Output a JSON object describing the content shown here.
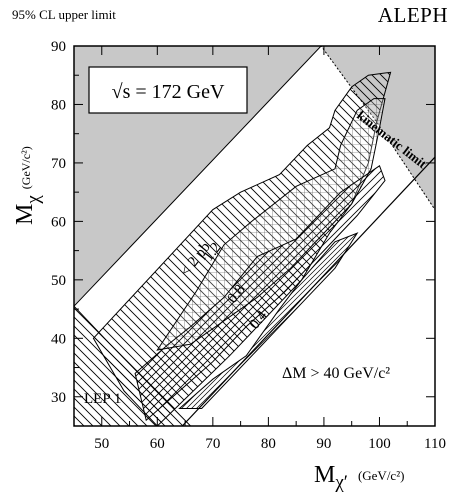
{
  "header": {
    "left_note": "95% CL upper limit",
    "experiment": "ALEPH"
  },
  "chart_data": {
    "type": "contour",
    "title": "",
    "energy_label": "√s = 172 GeV",
    "xlabel": {
      "symbol": "M",
      "sub": "χ′",
      "unit": "(GeV/c²)"
    },
    "ylabel": {
      "symbol": "M",
      "sub": "χ",
      "unit": "(GeV/c²)"
    },
    "xlim": [
      45,
      110
    ],
    "ylim": [
      25,
      90
    ],
    "xticks": [
      50,
      60,
      70,
      80,
      90,
      100,
      110
    ],
    "yticks": [
      30,
      40,
      50,
      60,
      70,
      80,
      90
    ],
    "grid": false,
    "regions": {
      "excluded_top": {
        "label": "",
        "colour": "#c8c8c8",
        "polygon": [
          [
            45,
            90
          ],
          [
            45,
            45.5
          ],
          [
            89.5,
            90
          ]
        ]
      },
      "kinematic": {
        "label": "kinematic limit",
        "colour": "#c8c8c8",
        "polygon": [
          [
            89.5,
            90
          ],
          [
            110,
            90
          ],
          [
            110,
            62
          ],
          [
            99.5,
            77
          ]
        ]
      },
      "lep1": {
        "label": "LEP 1",
        "polygon": [
          [
            45,
            25
          ],
          [
            45,
            45.5
          ],
          [
            51.5,
            39
          ],
          [
            66,
            25
          ]
        ]
      },
      "delta_m": {
        "label": "ΔM > 40 GeV/c²",
        "boundary": [
          [
            64.5,
            25
          ],
          [
            110,
            71
          ]
        ]
      }
    },
    "contours": [
      {
        "label": "< 2 pb",
        "value": 2,
        "polygon": [
          [
            48.5,
            40
          ],
          [
            70,
            62
          ],
          [
            75,
            65
          ],
          [
            82,
            68
          ],
          [
            87,
            73
          ],
          [
            91,
            76
          ],
          [
            92,
            79
          ],
          [
            95,
            83
          ],
          [
            98,
            85
          ],
          [
            102,
            85.5
          ],
          [
            99.5,
            77
          ],
          [
            98,
            70
          ],
          [
            95,
            63
          ],
          [
            91,
            58
          ],
          [
            86,
            50
          ],
          [
            80,
            44
          ],
          [
            73,
            37
          ],
          [
            66.5,
            31
          ],
          [
            60,
            25
          ],
          [
            54,
            31
          ]
        ]
      },
      {
        "label": "1.2",
        "value": 1.2,
        "polygon": [
          [
            60,
            38
          ],
          [
            67,
            48
          ],
          [
            72,
            56
          ],
          [
            77,
            60
          ],
          [
            85,
            66
          ],
          [
            92,
            69
          ],
          [
            93,
            73
          ],
          [
            96,
            79
          ],
          [
            99,
            81
          ],
          [
            101,
            81
          ],
          [
            100,
            76
          ],
          [
            98.5,
            69
          ],
          [
            95,
            63
          ],
          [
            90,
            58
          ],
          [
            84,
            52
          ],
          [
            78,
            47
          ],
          [
            72,
            43
          ],
          [
            66,
            39
          ]
        ]
      },
      {
        "label": "0.8",
        "value": 0.8,
        "polygon": [
          [
            56,
            34
          ],
          [
            62,
            39
          ],
          [
            66,
            42
          ],
          [
            72,
            47
          ],
          [
            78,
            54
          ],
          [
            85,
            57
          ],
          [
            93,
            65
          ],
          [
            100,
            69.5
          ],
          [
            101,
            67
          ],
          [
            96,
            61
          ],
          [
            90,
            55
          ],
          [
            83,
            48
          ],
          [
            76,
            42
          ],
          [
            70,
            36
          ],
          [
            64,
            31
          ],
          [
            58,
            26
          ]
        ]
      },
      {
        "label": "0.4",
        "value": 0.4,
        "polygon": [
          [
            64,
            28
          ],
          [
            70,
            33
          ],
          [
            76,
            37
          ],
          [
            82,
            45
          ],
          [
            86,
            50
          ],
          [
            92,
            56.5
          ],
          [
            96,
            58
          ],
          [
            92,
            52
          ],
          [
            86,
            46
          ],
          [
            80,
            40
          ],
          [
            74,
            34
          ],
          [
            68,
            28
          ]
        ]
      }
    ]
  }
}
